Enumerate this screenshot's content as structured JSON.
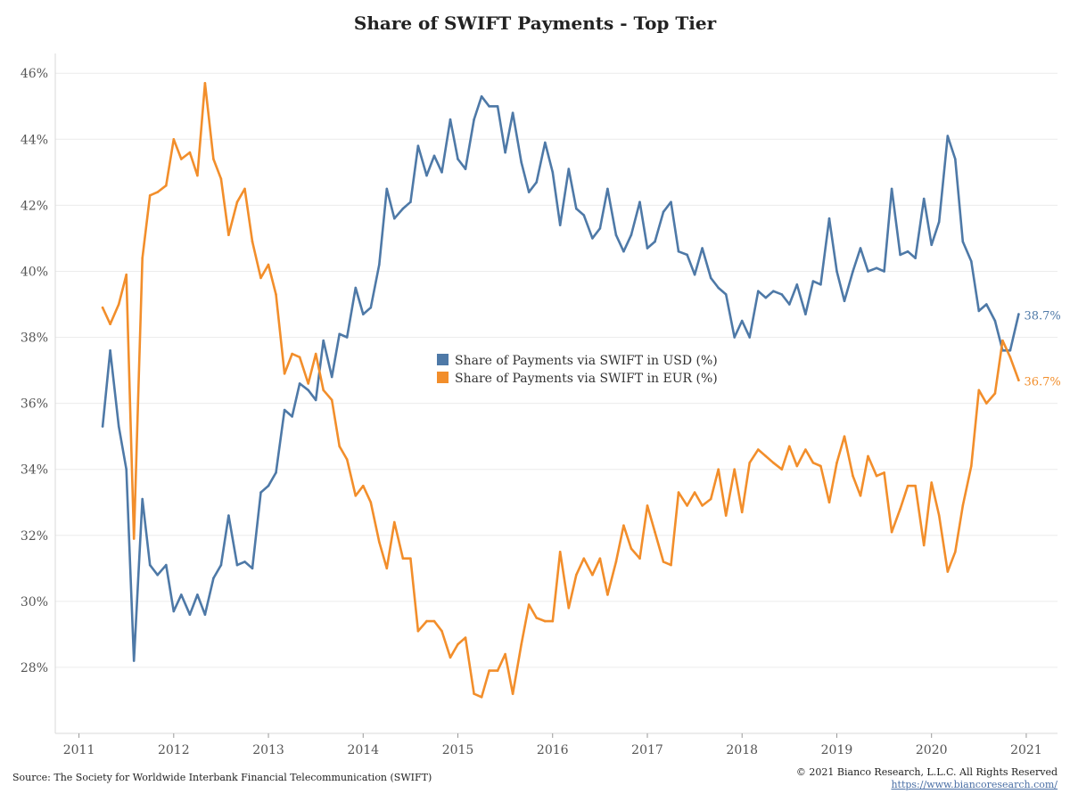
{
  "title": "Share of SWIFT Payments - Top Tier",
  "footer": {
    "source": "Source: The Society for Worldwide Interbank Financial Telecommunication (SWIFT)",
    "copyright": "© 2021 Bianco Research, L.L.C. All Rights Reserved",
    "link": "https://www.biancoresearch.com/"
  },
  "colors": {
    "usd": "#4e79a7",
    "eur": "#f28e2b",
    "grid": "#ececec",
    "axis": "#d8d8d8",
    "text": "#555555"
  },
  "chart_data": {
    "type": "line",
    "title": "Share of SWIFT Payments - Top Tier",
    "xlim": [
      2010.75,
      2021.33
    ],
    "ylim": [
      26.0,
      46.6
    ],
    "x_ticks": [
      2011,
      2012,
      2013,
      2014,
      2015,
      2016,
      2017,
      2018,
      2019,
      2020,
      2021
    ],
    "x_tick_labels": [
      "2011",
      "2012",
      "2013",
      "2014",
      "2015",
      "2016",
      "2017",
      "2018",
      "2019",
      "2020",
      "2021"
    ],
    "y_ticks": [
      28,
      30,
      32,
      34,
      36,
      38,
      40,
      42,
      44,
      46
    ],
    "y_tick_labels": [
      "28%",
      "30%",
      "32%",
      "34%",
      "36%",
      "38%",
      "40%",
      "42%",
      "44%",
      "46%"
    ],
    "grid": true,
    "legend_position": "center",
    "x": [
      2011.25,
      2011.33,
      2011.42,
      2011.5,
      2011.58,
      2011.67,
      2011.75,
      2011.83,
      2011.92,
      2012.0,
      2012.08,
      2012.17,
      2012.25,
      2012.33,
      2012.42,
      2012.5,
      2012.58,
      2012.67,
      2012.75,
      2012.83,
      2012.92,
      2013.0,
      2013.08,
      2013.17,
      2013.25,
      2013.33,
      2013.42,
      2013.5,
      2013.58,
      2013.67,
      2013.75,
      2013.83,
      2013.92,
      2014.0,
      2014.08,
      2014.17,
      2014.25,
      2014.33,
      2014.42,
      2014.5,
      2014.58,
      2014.67,
      2014.75,
      2014.83,
      2014.92,
      2015.0,
      2015.08,
      2015.17,
      2015.25,
      2015.33,
      2015.42,
      2015.5,
      2015.58,
      2015.67,
      2015.75,
      2015.83,
      2015.92,
      2016.0,
      2016.08,
      2016.17,
      2016.25,
      2016.33,
      2016.42,
      2016.5,
      2016.58,
      2016.67,
      2016.75,
      2016.83,
      2016.92,
      2017.0,
      2017.08,
      2017.17,
      2017.25,
      2017.33,
      2017.42,
      2017.5,
      2017.58,
      2017.67,
      2017.75,
      2017.83,
      2017.92,
      2018.0,
      2018.08,
      2018.17,
      2018.25,
      2018.33,
      2018.42,
      2018.5,
      2018.58,
      2018.67,
      2018.75,
      2018.83,
      2018.92,
      2019.0,
      2019.08,
      2019.17,
      2019.25,
      2019.33,
      2019.42,
      2019.5,
      2019.58,
      2019.67,
      2019.75,
      2019.83,
      2019.92,
      2020.0,
      2020.08,
      2020.17,
      2020.25,
      2020.33,
      2020.42,
      2020.5,
      2020.58,
      2020.67,
      2020.75,
      2020.83,
      2020.92
    ],
    "series": [
      {
        "name": "Share of Payments via SWIFT in USD (%)",
        "color": "#4e79a7",
        "end_label": "38.7%",
        "values": [
          35.3,
          37.6,
          35.3,
          34.0,
          28.2,
          33.1,
          31.1,
          30.8,
          31.1,
          29.7,
          30.2,
          29.6,
          30.2,
          29.6,
          30.7,
          31.1,
          32.6,
          31.1,
          31.2,
          31.0,
          33.3,
          33.5,
          33.9,
          35.8,
          35.6,
          36.6,
          36.4,
          36.1,
          37.9,
          36.8,
          38.1,
          38.0,
          39.5,
          38.7,
          38.9,
          40.2,
          42.5,
          41.6,
          41.9,
          42.1,
          43.8,
          42.9,
          43.5,
          43.0,
          44.6,
          43.4,
          43.1,
          44.6,
          45.3,
          45.0,
          45.0,
          43.6,
          44.8,
          43.3,
          42.4,
          42.7,
          43.9,
          43.0,
          41.4,
          43.1,
          41.9,
          41.7,
          41.0,
          41.3,
          42.5,
          41.1,
          40.6,
          41.1,
          42.1,
          40.7,
          40.9,
          41.8,
          42.1,
          40.6,
          40.5,
          39.9,
          40.7,
          39.8,
          39.5,
          39.3,
          38.0,
          38.5,
          38.0,
          39.4,
          39.2,
          39.4,
          39.3,
          39.0,
          39.6,
          38.7,
          39.7,
          39.6,
          41.6,
          40.0,
          39.1,
          40.0,
          40.7,
          40.0,
          40.1,
          40.0,
          42.5,
          40.5,
          40.6,
          40.4,
          42.2,
          40.8,
          41.5,
          44.1,
          43.4,
          40.9,
          40.3,
          38.8,
          39.0,
          38.5,
          37.6,
          37.6,
          38.7
        ]
      },
      {
        "name": "Share of Payments via SWIFT in EUR (%)",
        "color": "#f28e2b",
        "end_label": "36.7%",
        "values": [
          38.9,
          38.4,
          39.0,
          39.9,
          31.9,
          40.4,
          42.3,
          42.4,
          42.6,
          44.0,
          43.4,
          43.6,
          42.9,
          45.7,
          43.4,
          42.8,
          41.1,
          42.1,
          42.5,
          40.9,
          39.8,
          40.2,
          39.3,
          36.9,
          37.5,
          37.4,
          36.6,
          37.5,
          36.4,
          36.1,
          34.7,
          34.3,
          33.2,
          33.5,
          33.0,
          31.8,
          31.0,
          32.4,
          31.3,
          31.3,
          29.1,
          29.4,
          29.4,
          29.1,
          28.3,
          28.7,
          28.9,
          27.2,
          27.1,
          27.9,
          27.9,
          28.4,
          27.2,
          28.7,
          29.9,
          29.5,
          29.4,
          29.4,
          31.5,
          29.8,
          30.8,
          31.3,
          30.8,
          31.3,
          30.2,
          31.2,
          32.3,
          31.6,
          31.3,
          32.9,
          32.1,
          31.2,
          31.1,
          33.3,
          32.9,
          33.3,
          32.9,
          33.1,
          34.0,
          32.6,
          34.0,
          32.7,
          34.2,
          34.6,
          34.4,
          34.2,
          34.0,
          34.7,
          34.1,
          34.6,
          34.2,
          34.1,
          33.0,
          34.2,
          35.0,
          33.8,
          33.2,
          34.4,
          33.8,
          33.9,
          32.1,
          32.8,
          33.5,
          33.5,
          31.7,
          33.6,
          32.6,
          30.9,
          31.5,
          32.9,
          34.1,
          36.4,
          36.0,
          36.3,
          37.9,
          37.4,
          36.7
        ]
      }
    ]
  }
}
